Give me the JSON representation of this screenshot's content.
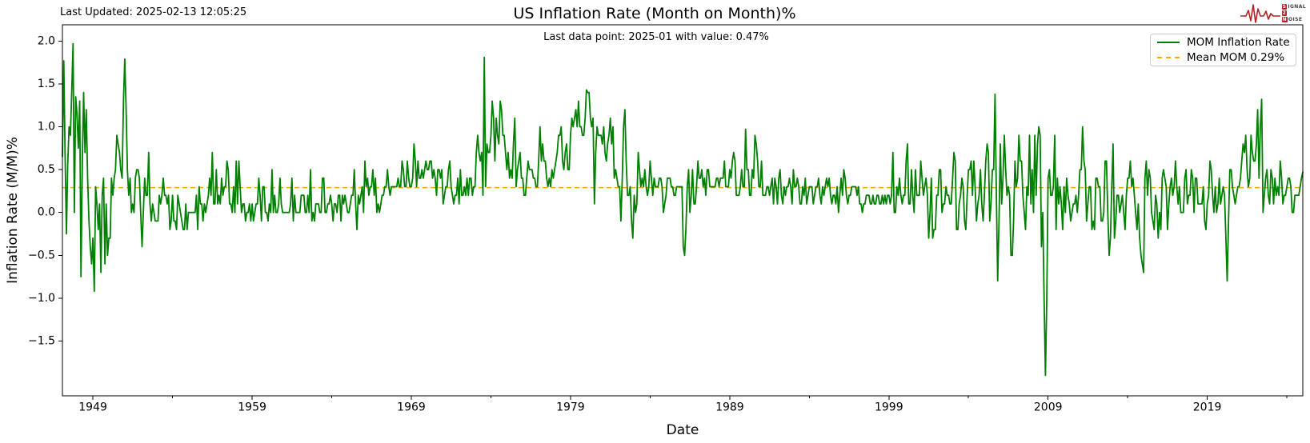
{
  "header": {
    "last_updated": "Last Updated: 2025-02-13 12:05:25",
    "title": "US Inflation Rate (Month on Month)%",
    "subtitle": "Last data point: 2025-01 with value: 0.47%"
  },
  "logo": {
    "rows": [
      {
        "boxed": "S",
        "rest": "IGNAL"
      },
      {
        "boxed": "2",
        "rest": ""
      },
      {
        "boxed": "N",
        "rest": "OISE"
      }
    ],
    "color": "#b22222"
  },
  "legend": {
    "items": [
      {
        "label": "MOM Inflation Rate",
        "color": "#008000",
        "style": "solid"
      },
      {
        "label": "Mean MOM 0.29%",
        "color": "#FFA500",
        "style": "dashed"
      }
    ]
  },
  "chart_data": {
    "type": "line",
    "title": "US Inflation Rate (Month on Month)%",
    "annotation": "Last data point: 2025-01 with value: 0.47%",
    "xlabel": "Date",
    "ylabel": "Inflation Rate (M/M)%",
    "x_ticks": [
      1949,
      1959,
      1969,
      1979,
      1989,
      1999,
      2009,
      2019
    ],
    "x_tick_labels": [
      "1949",
      "1959",
      "1969",
      "1979",
      "1989",
      "1999",
      "2009",
      "2019"
    ],
    "x_minor_ticks": [
      1954,
      1964,
      1974,
      1984,
      1994,
      2004,
      2014,
      2024
    ],
    "y_ticks": [
      -1.5,
      -1.0,
      -0.5,
      0.0,
      0.5,
      1.0,
      1.5,
      2.0
    ],
    "y_tick_labels": [
      "−1.5",
      "−1.0",
      "−0.5",
      "0.0",
      "0.5",
      "1.0",
      "1.5",
      "2.0"
    ],
    "xlim": [
      1947.083,
      2025.0
    ],
    "ylim": [
      -2.14,
      2.19
    ],
    "grid": false,
    "legend_position": "upper right",
    "mean_line": {
      "label": "Mean MOM 0.29%",
      "value": 0.29,
      "color": "#FFA500",
      "style": "dashed"
    },
    "last_point": {
      "date": "2025-01",
      "value": 0.47
    },
    "series_name": "MOM Inflation Rate",
    "series_color": "#008000",
    "start": "1947-02",
    "frequency": "monthly",
    "values_by_year": {
      "1947": [
        0.65,
        1.77,
        0.7,
        -0.25,
        0.55,
        1.0,
        0.9,
        1.4,
        1.97,
        0.0,
        1.35
      ],
      "1948": [
        1.15,
        0.75,
        1.3,
        -0.75,
        0.6,
        1.4,
        0.7,
        1.2,
        0.4,
        -0.1,
        -0.4,
        -0.6
      ],
      "1949": [
        -0.3,
        -0.92,
        0.3,
        0.1,
        -0.2,
        0.1,
        -0.7,
        0.2,
        0.4,
        -0.6,
        0.1,
        -0.5
      ],
      "1950": [
        -0.3,
        -0.3,
        0.4,
        0.2,
        0.4,
        0.5,
        0.9,
        0.8,
        0.7,
        0.5,
        0.4,
        1.3
      ],
      "1951": [
        1.79,
        1.2,
        0.5,
        0.2,
        0.4,
        0.0,
        0.1,
        0.0,
        0.4,
        0.5,
        0.5,
        0.4
      ],
      "1952": [
        0.0,
        -0.4,
        0.0,
        0.4,
        0.2,
        0.2,
        0.7,
        0.1,
        -0.1,
        0.1,
        0.0,
        -0.1
      ],
      "1953": [
        -0.1,
        -0.1,
        0.2,
        0.1,
        0.2,
        0.4,
        0.2,
        0.2,
        0.1,
        0.2,
        -0.2,
        -0.1
      ],
      "1954": [
        0.2,
        -0.1,
        -0.1,
        -0.2,
        0.2,
        0.1,
        0.0,
        -0.1,
        -0.2,
        -0.2,
        0.1,
        -0.2
      ],
      "1955": [
        0.0,
        0.0,
        0.0,
        0.0,
        0.0,
        0.0,
        0.2,
        -0.2,
        0.3,
        0.1,
        0.1,
        -0.1
      ],
      "1956": [
        0.1,
        0.0,
        0.1,
        0.2,
        0.4,
        0.2,
        0.7,
        0.1,
        0.1,
        0.5,
        0.1,
        0.2
      ],
      "1957": [
        0.1,
        0.4,
        0.2,
        0.3,
        0.3,
        0.6,
        0.5,
        0.1,
        0.1,
        0.0,
        0.3,
        0.0
      ],
      "1958": [
        0.6,
        0.1,
        0.6,
        0.3,
        0.0,
        0.1,
        0.1,
        -0.1,
        0.0,
        0.0,
        0.1,
        -0.1
      ],
      "1959": [
        0.1,
        -0.1,
        0.0,
        0.1,
        0.1,
        0.4,
        0.2,
        -0.1,
        0.3,
        0.3,
        0.0,
        0.0
      ],
      "1960": [
        -0.1,
        0.1,
        0.0,
        0.5,
        0.0,
        0.2,
        0.0,
        0.0,
        0.1,
        0.4,
        0.1,
        0.0
      ],
      "1961": [
        0.0,
        0.0,
        0.0,
        0.0,
        0.0,
        0.1,
        0.4,
        -0.1,
        0.2,
        0.0,
        0.0,
        0.0
      ],
      "1962": [
        0.0,
        0.2,
        0.2,
        0.2,
        0.0,
        0.0,
        0.2,
        0.0,
        0.5,
        -0.1,
        0.0,
        -0.1
      ],
      "1963": [
        0.1,
        0.1,
        0.1,
        0.0,
        0.0,
        0.4,
        0.4,
        0.0,
        0.0,
        0.1,
        0.1,
        0.2
      ],
      "1964": [
        0.1,
        -0.1,
        0.1,
        0.1,
        0.0,
        0.2,
        0.2,
        -0.1,
        0.2,
        0.1,
        0.2,
        0.1
      ],
      "1965": [
        0.0,
        0.0,
        0.1,
        0.2,
        0.2,
        0.5,
        0.1,
        -0.2,
        0.2,
        0.1,
        0.2,
        0.3
      ],
      "1966": [
        0.0,
        0.6,
        0.3,
        0.4,
        0.2,
        0.3,
        0.3,
        0.5,
        0.2,
        0.4,
        0.0,
        0.1
      ],
      "1967": [
        0.0,
        0.1,
        0.2,
        0.2,
        0.3,
        0.3,
        0.5,
        0.3,
        0.2,
        0.3,
        0.3,
        0.3
      ],
      "1968": [
        0.3,
        0.3,
        0.4,
        0.3,
        0.3,
        0.6,
        0.5,
        0.3,
        0.3,
        0.6,
        0.4,
        0.3
      ],
      "1969": [
        0.3,
        0.4,
        0.8,
        0.6,
        0.3,
        0.6,
        0.4,
        0.4,
        0.5,
        0.4,
        0.5,
        0.6
      ],
      "1970": [
        0.5,
        0.5,
        0.6,
        0.6,
        0.4,
        0.5,
        0.4,
        0.2,
        0.5,
        0.5,
        0.4,
        0.5
      ],
      "1971": [
        0.1,
        0.2,
        0.3,
        0.3,
        0.5,
        0.6,
        0.3,
        0.2,
        0.1,
        0.2,
        0.2,
        0.4
      ],
      "1972": [
        0.1,
        0.5,
        0.2,
        0.2,
        0.3,
        0.2,
        0.4,
        0.2,
        0.4,
        0.4,
        0.2,
        0.3
      ],
      "1973": [
        0.3,
        0.7,
        0.9,
        0.7,
        0.6,
        0.7,
        0.2,
        1.81,
        0.3,
        0.8,
        0.7,
        0.7
      ],
      "1974": [
        0.9,
        1.3,
        1.1,
        0.6,
        1.1,
        0.9,
        0.8,
        1.3,
        1.2,
        0.9,
        0.9,
        0.7
      ],
      "1975": [
        0.5,
        0.7,
        0.4,
        0.5,
        0.4,
        0.8,
        1.1,
        0.3,
        0.5,
        0.6,
        0.7,
        0.4
      ],
      "1976": [
        0.4,
        0.2,
        0.2,
        0.4,
        0.6,
        0.5,
        0.5,
        0.5,
        0.4,
        0.4,
        0.3,
        0.3
      ],
      "1977": [
        0.6,
        1.0,
        0.6,
        0.8,
        0.6,
        0.6,
        0.4,
        0.3,
        0.4,
        0.3,
        0.5,
        0.4
      ],
      "1978": [
        0.5,
        0.6,
        0.7,
        0.9,
        0.9,
        1.0,
        0.6,
        0.5,
        0.7,
        0.8,
        0.5,
        0.5
      ],
      "1979": [
        0.9,
        1.1,
        1.0,
        1.1,
        1.2,
        1.0,
        1.3,
        1.0,
        1.0,
        0.9,
        0.9,
        1.1
      ],
      "1980": [
        1.43,
        1.4,
        1.4,
        1.1,
        1.0,
        1.1,
        0.1,
        0.7,
        1.0,
        0.9,
        0.9,
        0.9
      ],
      "1981": [
        0.8,
        1.0,
        0.7,
        0.6,
        0.8,
        0.9,
        1.1,
        0.8,
        1.0,
        0.4,
        0.5,
        0.4
      ],
      "1982": [
        0.3,
        0.3,
        -0.1,
        0.4,
        1.0,
        1.2,
        0.6,
        0.2,
        0.2,
        0.3,
        -0.1,
        -0.3
      ],
      "1983": [
        0.2,
        0.0,
        0.1,
        0.7,
        0.5,
        0.3,
        0.4,
        0.3,
        0.5,
        0.3,
        0.2,
        0.3
      ],
      "1984": [
        0.6,
        0.4,
        0.2,
        0.4,
        0.3,
        0.3,
        0.3,
        0.4,
        0.4,
        0.3,
        0.0,
        0.1
      ],
      "1985": [
        0.2,
        0.4,
        0.4,
        0.4,
        0.3,
        0.3,
        0.2,
        0.2,
        0.3,
        0.3,
        0.3,
        0.3
      ],
      "1986": [
        0.3,
        -0.4,
        -0.5,
        -0.2,
        0.3,
        0.5,
        0.0,
        0.2,
        0.5,
        0.1,
        0.1,
        0.3
      ],
      "1987": [
        0.6,
        0.4,
        0.4,
        0.5,
        0.3,
        0.4,
        0.2,
        0.5,
        0.5,
        0.3,
        0.3,
        0.3
      ],
      "1988": [
        0.3,
        0.3,
        0.4,
        0.4,
        0.3,
        0.4,
        0.4,
        0.4,
        0.6,
        0.3,
        0.3,
        0.3
      ],
      "1989": [
        0.5,
        0.4,
        0.6,
        0.7,
        0.6,
        0.2,
        0.2,
        0.2,
        0.3,
        0.5,
        0.3,
        0.3
      ],
      "1990": [
        0.97,
        0.5,
        0.5,
        0.2,
        0.2,
        0.5,
        0.4,
        0.9,
        0.8,
        0.6,
        0.3,
        0.3
      ],
      "1991": [
        0.6,
        0.2,
        0.2,
        0.2,
        0.3,
        0.3,
        0.2,
        0.3,
        0.4,
        0.1,
        0.4,
        0.3
      ],
      "1992": [
        0.1,
        0.4,
        0.5,
        0.2,
        0.1,
        0.3,
        0.2,
        0.3,
        0.3,
        0.4,
        0.3,
        0.1
      ],
      "1993": [
        0.5,
        0.3,
        0.3,
        0.4,
        0.3,
        0.1,
        0.1,
        0.3,
        0.2,
        0.4,
        0.1,
        0.2
      ],
      "1994": [
        0.3,
        0.3,
        0.3,
        0.1,
        0.2,
        0.3,
        0.3,
        0.4,
        0.2,
        0.1,
        0.3,
        0.2
      ],
      "1995": [
        0.3,
        0.4,
        0.3,
        0.4,
        0.2,
        0.1,
        0.2,
        0.2,
        0.1,
        0.3,
        0.0,
        0.2
      ],
      "1996": [
        0.4,
        0.2,
        0.5,
        0.4,
        0.2,
        0.1,
        0.2,
        0.2,
        0.3,
        0.3,
        0.3,
        0.3
      ],
      "1997": [
        0.2,
        0.3,
        0.1,
        0.1,
        0.0,
        0.1,
        0.1,
        0.2,
        0.2,
        0.2,
        0.1,
        0.1
      ],
      "1998": [
        0.2,
        0.1,
        0.1,
        0.2,
        0.2,
        0.1,
        0.1,
        0.2,
        0.1,
        0.2,
        0.1,
        0.2
      ],
      "1999": [
        0.2,
        0.1,
        0.2,
        0.7,
        0.0,
        0.0,
        0.3,
        0.2,
        0.4,
        0.2,
        0.1,
        0.2
      ],
      "2000": [
        0.2,
        0.6,
        0.8,
        0.1,
        0.1,
        0.5,
        0.2,
        0.0,
        0.5,
        0.2,
        0.2,
        0.2
      ],
      "2001": [
        0.6,
        0.4,
        0.2,
        0.3,
        0.4,
        0.2,
        -0.3,
        0.0,
        0.4,
        -0.3,
        -0.2,
        -0.2
      ],
      "2002": [
        0.2,
        0.2,
        0.5,
        0.5,
        0.0,
        0.1,
        0.1,
        0.3,
        0.2,
        0.2,
        0.1,
        0.1
      ],
      "2003": [
        0.4,
        0.7,
        0.6,
        -0.2,
        -0.2,
        0.1,
        0.2,
        0.4,
        0.3,
        -0.1,
        -0.2,
        0.2
      ],
      "2004": [
        0.5,
        0.5,
        0.6,
        0.2,
        0.6,
        0.3,
        -0.1,
        0.1,
        0.2,
        0.5,
        0.1,
        -0.1
      ],
      "2005": [
        0.2,
        0.6,
        0.8,
        0.7,
        -0.1,
        0.1,
        0.5,
        0.5,
        1.38,
        0.2,
        -0.8,
        -0.1
      ],
      "2006": [
        0.8,
        0.1,
        0.4,
        0.9,
        0.5,
        0.2,
        0.3,
        0.2,
        -0.5,
        -0.5,
        -0.1,
        0.6
      ],
      "2007": [
        0.3,
        0.4,
        0.9,
        0.6,
        0.6,
        0.2,
        0.0,
        -0.2,
        0.3,
        0.2,
        0.9,
        0.1
      ],
      "2008": [
        0.5,
        0.0,
        0.9,
        0.2,
        0.8,
        1.0,
        0.9,
        -0.4,
        0.0,
        -1.0,
        -1.9,
        -1.0
      ],
      "2009": [
        0.4,
        0.5,
        0.2,
        0.2,
        0.3,
        0.9,
        -0.2,
        0.4,
        0.1,
        0.3,
        0.1,
        -0.2
      ],
      "2010": [
        0.3,
        0.0,
        0.4,
        0.2,
        0.1,
        -0.1,
        0.0,
        0.1,
        0.1,
        0.2,
        0.0,
        0.2
      ],
      "2011": [
        0.5,
        0.5,
        1.0,
        0.6,
        0.5,
        -0.1,
        0.1,
        0.3,
        0.3,
        -0.2,
        -0.1,
        -0.2
      ],
      "2012": [
        0.4,
        0.4,
        0.3,
        0.3,
        -0.1,
        -0.1,
        0.0,
        0.6,
        0.6,
        0.0,
        -0.5,
        -0.3
      ],
      "2013": [
        0.3,
        0.8,
        -0.3,
        -0.1,
        0.2,
        0.2,
        0.0,
        0.1,
        0.2,
        0.0,
        -0.2,
        0.2
      ],
      "2014": [
        0.4,
        0.4,
        0.6,
        0.3,
        0.4,
        0.2,
        0.0,
        -0.2,
        0.1,
        -0.3,
        -0.5,
        -0.6
      ],
      "2015": [
        -0.7,
        0.4,
        0.6,
        0.2,
        0.5,
        0.4,
        0.0,
        -0.1,
        -0.2,
        0.2,
        0.1,
        -0.3
      ],
      "2016": [
        0.0,
        -0.2,
        0.4,
        0.5,
        0.4,
        0.3,
        -0.2,
        0.1,
        0.3,
        0.4,
        0.2,
        0.3
      ],
      "2017": [
        0.6,
        0.3,
        0.1,
        0.3,
        0.0,
        0.0,
        0.0,
        0.4,
        0.5,
        0.1,
        0.2,
        0.2
      ],
      "2018": [
        0.5,
        0.4,
        0.0,
        0.4,
        0.4,
        0.1,
        0.1,
        0.1,
        0.1,
        0.3,
        -0.1,
        -0.2
      ],
      "2019": [
        0.1,
        0.2,
        0.6,
        0.5,
        0.2,
        0.0,
        0.3,
        0.0,
        0.1,
        0.4,
        0.1,
        0.2
      ],
      "2020": [
        0.3,
        0.2,
        -0.3,
        -0.8,
        -0.1,
        0.5,
        0.5,
        0.3,
        0.2,
        0.1,
        0.2,
        0.3
      ],
      "2021": [
        0.3,
        0.4,
        0.6,
        0.8,
        0.7,
        0.9,
        0.5,
        0.3,
        0.4,
        0.9,
        0.7,
        0.6
      ],
      "2022": [
        0.6,
        0.8,
        1.2,
        0.4,
        1.0,
        1.32,
        0.0,
        0.2,
        0.4,
        0.5,
        0.2,
        0.1
      ],
      "2023": [
        0.5,
        0.4,
        0.1,
        0.4,
        0.2,
        0.3,
        0.2,
        0.6,
        0.4,
        0.1,
        0.2,
        0.2
      ],
      "2024": [
        0.3,
        0.4,
        0.4,
        0.3,
        0.0,
        0.0,
        0.2,
        0.2,
        0.2,
        0.2,
        0.3,
        0.4
      ],
      "2025": [
        0.47
      ]
    }
  }
}
